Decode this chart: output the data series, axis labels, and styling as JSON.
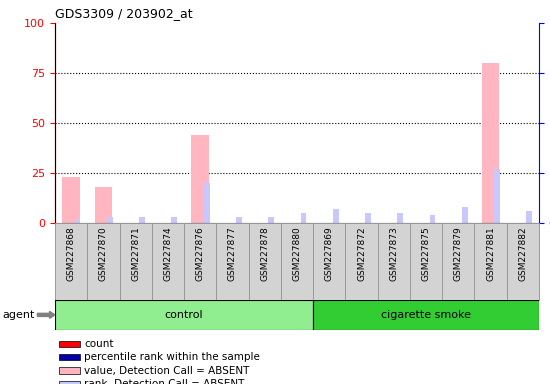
{
  "title": "GDS3309 / 203902_at",
  "samples": [
    "GSM227868",
    "GSM227870",
    "GSM227871",
    "GSM227874",
    "GSM227876",
    "GSM227877",
    "GSM227878",
    "GSM227880",
    "GSM227869",
    "GSM227872",
    "GSM227873",
    "GSM227875",
    "GSM227879",
    "GSM227881",
    "GSM227882"
  ],
  "absent_value_bars": [
    23,
    18,
    0,
    0,
    44,
    0,
    0,
    0,
    0,
    0,
    0,
    0,
    0,
    80,
    0
  ],
  "absent_rank_bars": [
    2,
    3,
    3,
    3,
    20,
    3,
    3,
    5,
    7,
    5,
    5,
    4,
    8,
    27,
    6
  ],
  "control_color": "#90EE90",
  "smoke_color": "#32CD32",
  "absent_value_color": "#FFB6C1",
  "absent_rank_color": "#C8C8FF",
  "count_color": "#FF0000",
  "rank_color": "#0000AA",
  "sample_box_color": "#D3D3D3",
  "sample_box_edge": "#999999",
  "ylim": [
    0,
    100
  ],
  "yticks": [
    0,
    25,
    50,
    75,
    100
  ],
  "background_color": "#ffffff",
  "agent_label": "agent",
  "group_names": [
    "control",
    "cigarette smoke"
  ],
  "n_control": 8,
  "n_smoke": 7,
  "legend_items": [
    [
      "#FF0000",
      "count"
    ],
    [
      "#0000AA",
      "percentile rank within the sample"
    ],
    [
      "#FFB6C1",
      "value, Detection Call = ABSENT"
    ],
    [
      "#C8C8FF",
      "rank, Detection Call = ABSENT"
    ]
  ]
}
